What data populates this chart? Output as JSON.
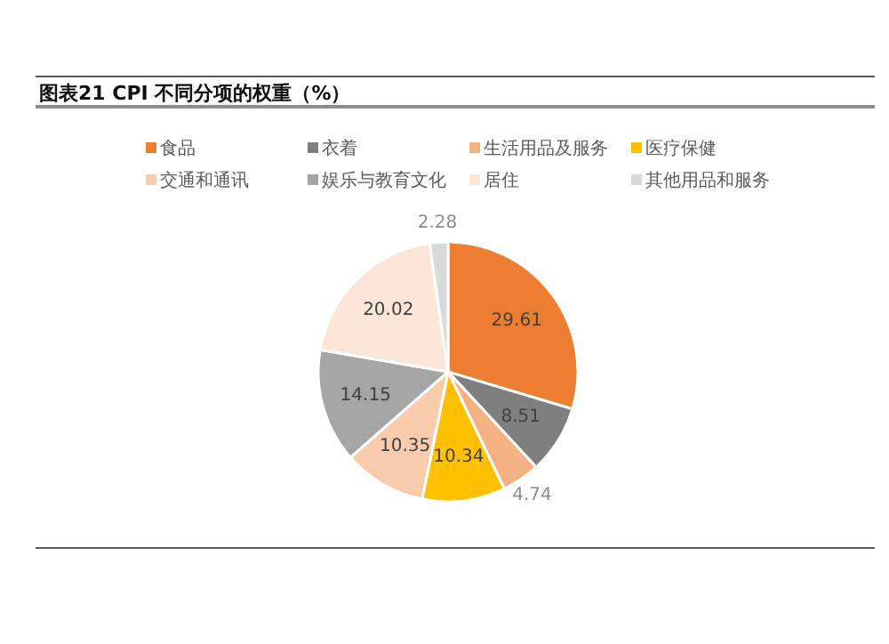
{
  "chart_data": {
    "type": "pie",
    "title": "图表21  CPI 不同分项的权重（%）",
    "categories": [
      "食品",
      "衣着",
      "生活用品及服务",
      "医疗保健",
      "交通和通讯",
      "娱乐与教育文化",
      "居住",
      "其他用品和服务"
    ],
    "values": [
      29.61,
      8.51,
      4.74,
      10.34,
      10.35,
      14.15,
      20.02,
      2.28
    ],
    "colors": [
      "#ed7d31",
      "#7f7f7f",
      "#f4b183",
      "#ffc000",
      "#f8cbad",
      "#a5a5a5",
      "#fbe5d6",
      "#d9d9d9"
    ],
    "data_labels": true,
    "legend": "top"
  }
}
